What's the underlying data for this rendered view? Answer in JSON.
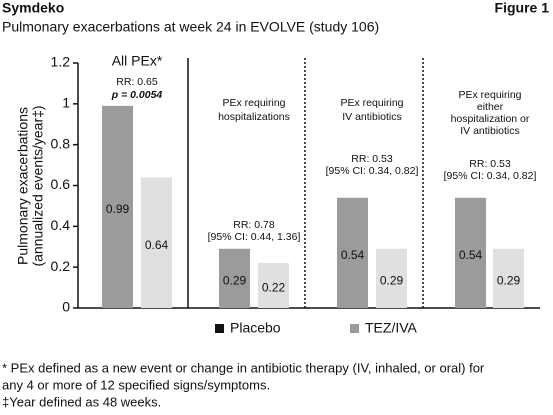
{
  "chart_data": {
    "type": "bar",
    "header": "Symdeko",
    "figure_label": "Figure 1",
    "title": "Pulmonary exacerbations at week 24 in EVOLVE (study 106)",
    "ylabel": [
      "Pulmonary exacerbations",
      "(annualized events/year‡)"
    ],
    "categories": [
      null,
      null,
      null,
      null
    ],
    "series": [
      {
        "name": "Placebo",
        "color": "#9b9b9b",
        "values": [
          0.99,
          0.29,
          0.54,
          0.54
        ]
      },
      {
        "name": "TEZ/IVA",
        "color": "#e0e0e0",
        "values": [
          0.64,
          0.22,
          0.29,
          0.29
        ]
      }
    ],
    "panels": [
      {
        "label": [
          "All PEx*"
        ],
        "stat": [
          "RR: 0.65",
          "p = 0.0054"
        ]
      },
      {
        "label": [
          "PEx requiring",
          "hospitalizations"
        ],
        "stat": [
          "RR: 0.78",
          "[95% CI: 0.44, 1.36]"
        ]
      },
      {
        "label": [
          "PEx requiring",
          "IV antibiotics"
        ],
        "stat": [
          "RR: 0.53",
          "[95% CI: 0.34, 0.82]"
        ]
      },
      {
        "label": [
          "PEx requiring",
          "either",
          "hospitalization or",
          "IV antibiotics"
        ],
        "stat": [
          "RR: 0.53",
          "[95% CI: 0.34, 0.82]"
        ]
      }
    ],
    "ylim": [
      0,
      1.2
    ],
    "yticks": [
      0,
      0.2,
      0.4,
      0.6,
      0.8,
      1,
      1.2
    ],
    "footnotes": [
      "* PEx defined as a new event or change in antibiotic therapy (IV, inhaled, or oral) for",
      "any 4 or more of 12 specified signs/symptoms.",
      "‡Year defined as 48 weeks."
    ]
  }
}
